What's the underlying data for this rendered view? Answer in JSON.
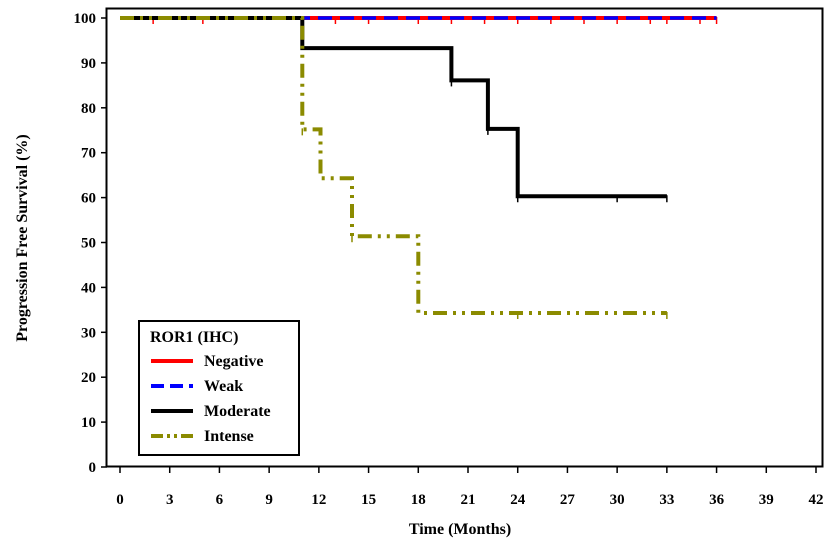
{
  "chart_data": {
    "type": "line",
    "title": "",
    "xlabel": "Time (Months)",
    "ylabel": "Progression Free Survival (%)",
    "xlim": [
      0,
      42
    ],
    "ylim": [
      0,
      100
    ],
    "x_ticks": [
      "0",
      "3",
      "6",
      "9",
      "12",
      "15",
      "18",
      "21",
      "24",
      "27",
      "30",
      "33",
      "36",
      "39",
      "42"
    ],
    "y_ticks": [
      "0",
      "10",
      "20",
      "30",
      "40",
      "50",
      "60",
      "70",
      "80",
      "90",
      "100"
    ],
    "legend": {
      "title": "ROR1 (IHC)",
      "placement": "bottom-left"
    },
    "step_function": true,
    "grid": false,
    "series": [
      {
        "name": "Negative",
        "color": "#ff0000",
        "style": "solid",
        "points": [
          [
            0,
            100
          ],
          [
            36,
            100
          ]
        ],
        "censor_marks": [
          [
            2,
            100
          ],
          [
            5,
            100
          ],
          [
            11,
            100
          ],
          [
            13,
            100
          ],
          [
            15,
            100
          ],
          [
            18,
            100
          ],
          [
            20,
            100
          ],
          [
            22,
            100
          ],
          [
            24,
            100
          ],
          [
            26,
            100
          ],
          [
            28,
            100
          ],
          [
            30,
            100
          ],
          [
            32,
            100
          ],
          [
            33,
            100
          ],
          [
            35,
            100
          ],
          [
            36,
            100
          ]
        ]
      },
      {
        "name": "Weak",
        "color": "#0000ff",
        "style": "dashed",
        "points": [
          [
            0,
            100
          ],
          [
            36,
            100
          ]
        ],
        "censor_marks": []
      },
      {
        "name": "Moderate",
        "color": "#000000",
        "style": "solid",
        "points": [
          [
            0,
            100
          ],
          [
            11,
            100
          ],
          [
            11,
            93.3
          ],
          [
            20,
            93.3
          ],
          [
            20,
            86.1
          ],
          [
            22.2,
            86.1
          ],
          [
            22.2,
            75.3
          ],
          [
            24,
            75.3
          ],
          [
            24,
            60.3
          ],
          [
            33,
            60.3
          ]
        ],
        "censor_marks": [
          [
            20,
            86.1
          ],
          [
            22.2,
            75.3
          ],
          [
            24,
            60.3
          ],
          [
            30,
            60.3
          ],
          [
            33,
            60.3
          ]
        ]
      },
      {
        "name": "Intense",
        "color": "#8b8b00",
        "style": "dashdotdot",
        "points": [
          [
            0,
            100
          ],
          [
            11,
            100
          ],
          [
            11,
            75.2
          ],
          [
            12.1,
            75.2
          ],
          [
            12.1,
            64.3
          ],
          [
            14,
            64.3
          ],
          [
            14,
            51.4
          ],
          [
            18,
            51.4
          ],
          [
            18,
            34.3
          ],
          [
            33,
            34.3
          ]
        ],
        "censor_marks": [
          [
            11,
            75.2
          ],
          [
            14,
            51.4
          ],
          [
            24,
            34.3
          ],
          [
            33,
            34.3
          ]
        ]
      }
    ]
  }
}
